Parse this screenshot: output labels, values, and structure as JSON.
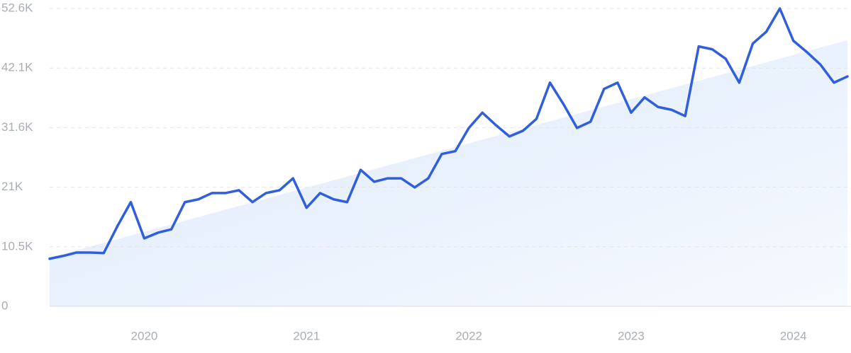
{
  "chart_data": {
    "type": "line",
    "categories": [
      null,
      null,
      null,
      null,
      null,
      null,
      null,
      "2020",
      null,
      null,
      null,
      null,
      null,
      null,
      null,
      null,
      null,
      null,
      null,
      "2021",
      null,
      null,
      null,
      null,
      null,
      null,
      null,
      null,
      null,
      null,
      null,
      "2022",
      null,
      null,
      null,
      null,
      null,
      null,
      null,
      null,
      null,
      null,
      null,
      "2023",
      null,
      null,
      null,
      null,
      null,
      null,
      null,
      null,
      null,
      null,
      null,
      "2024",
      null,
      null,
      null,
      null
    ],
    "series": [
      {
        "color": "#2f5fdc",
        "values": [
          8400,
          8900,
          9500,
          9500,
          9400,
          14100,
          18400,
          12000,
          13000,
          13600,
          18400,
          18900,
          20000,
          20000,
          20500,
          18400,
          20000,
          20500,
          22600,
          17400,
          20000,
          18900,
          18400,
          24100,
          22000,
          22600,
          22600,
          21000,
          22600,
          26900,
          27400,
          31500,
          34200,
          32000,
          30000,
          31000,
          33100,
          39500,
          35700,
          31500,
          32600,
          38400,
          39500,
          34200,
          36900,
          35200,
          34700,
          33600,
          45900,
          45400,
          43700,
          39500,
          46400,
          48500,
          52600,
          46900,
          44900,
          42700,
          39500,
          40600
        ]
      }
    ],
    "trend": {
      "color": "#dce9fb",
      "values": [
        8600,
        47000
      ]
    },
    "ylim": [
      0,
      52600
    ],
    "yticks": [
      0,
      {
        "value": 10520,
        "label": "10.5K"
      },
      {
        "value": 21040,
        "label": "21K"
      },
      {
        "value": 31560,
        "label": "31.6K"
      },
      {
        "value": 42080,
        "label": "42.1K"
      },
      {
        "value": 52600,
        "label": "52.6K"
      }
    ],
    "grid": true
  }
}
